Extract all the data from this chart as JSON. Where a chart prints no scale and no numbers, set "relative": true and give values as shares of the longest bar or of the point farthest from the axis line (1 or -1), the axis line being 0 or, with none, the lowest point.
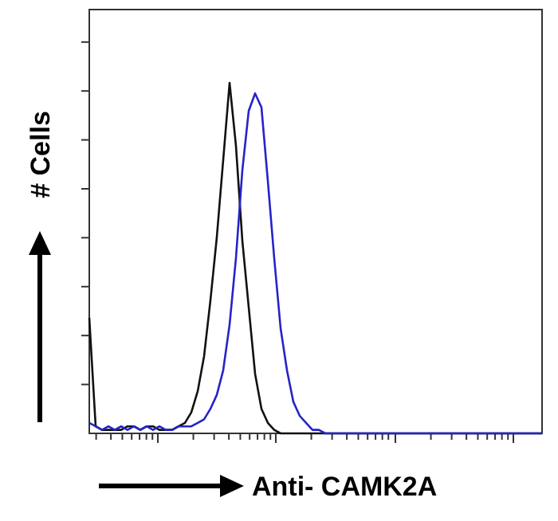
{
  "chart_data": {
    "type": "line",
    "relative": true,
    "xlabel": "Anti- CAMK2A",
    "ylabel": "# Cells",
    "categories": [
      null,
      null,
      null,
      null,
      null,
      null,
      null,
      null,
      null,
      null,
      null,
      null,
      null,
      null,
      null,
      null,
      null,
      null,
      null,
      null,
      null,
      null,
      null,
      null,
      null,
      null,
      null,
      null,
      null,
      null,
      null,
      null,
      null,
      null,
      null,
      null,
      null,
      null,
      null,
      null,
      null,
      null,
      null,
      null,
      null,
      null,
      null,
      null,
      null,
      null,
      null,
      null,
      null,
      null,
      null,
      null,
      null,
      null,
      null,
      null,
      null,
      null,
      null,
      null,
      null,
      null,
      null,
      null,
      null,
      null,
      null,
      null
    ],
    "series": [
      {
        "color": "#111111",
        "values": [
          0.33,
          0.02,
          0.01,
          0.01,
          0.01,
          0.01,
          0.02,
          0.02,
          0.01,
          0.02,
          0.02,
          0.01,
          0.01,
          0.01,
          0.02,
          0.03,
          0.06,
          0.12,
          0.22,
          0.38,
          0.56,
          0.78,
          1,
          0.82,
          0.55,
          0.36,
          0.17,
          0.07,
          0.03,
          0.01,
          0,
          0,
          0,
          0,
          0,
          0,
          0,
          0,
          0,
          0,
          0,
          0,
          0,
          0,
          0,
          0,
          0,
          0,
          0,
          0,
          0,
          0,
          0,
          0,
          0,
          0,
          0,
          0,
          0,
          0,
          0,
          0,
          0,
          0,
          0,
          0,
          0,
          0,
          0,
          0,
          0,
          0
        ]
      },
      {
        "color": "#2424c8",
        "values": [
          0.03,
          0.02,
          0.01,
          0.02,
          0.01,
          0.02,
          0.01,
          0.02,
          0.01,
          0.02,
          0.01,
          0.02,
          0.01,
          0.01,
          0.02,
          0.02,
          0.02,
          0.03,
          0.04,
          0.07,
          0.11,
          0.18,
          0.31,
          0.5,
          0.75,
          0.92,
          0.97,
          0.93,
          0.72,
          0.5,
          0.3,
          0.18,
          0.09,
          0.05,
          0.03,
          0.01,
          0.01,
          0,
          0,
          0,
          0,
          0,
          0,
          0,
          0,
          0,
          0,
          0,
          0,
          0,
          0,
          0,
          0,
          0,
          0,
          0,
          0,
          0,
          0,
          0,
          0,
          0,
          0,
          0,
          0,
          0,
          0,
          0,
          0,
          0,
          0,
          0
        ]
      }
    ]
  }
}
